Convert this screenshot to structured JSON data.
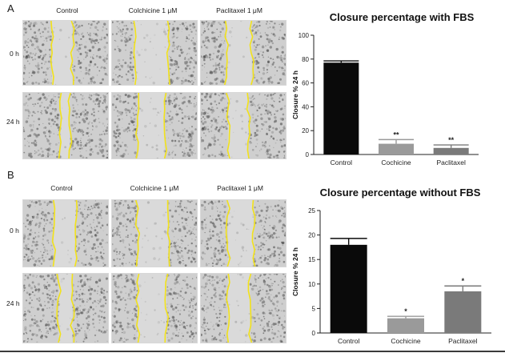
{
  "panels": [
    {
      "letter": "A",
      "columns": [
        "Control",
        "Colchicine 1 μM",
        "Paclitaxel 1 μM"
      ],
      "rows": [
        "0 h",
        "24 h"
      ]
    },
    {
      "letter": "B",
      "columns": [
        "Control",
        "Colchicine 1 μM",
        "Paclitaxel 1 μM"
      ],
      "rows": [
        "0 h",
        "24 h"
      ]
    }
  ],
  "colors": {
    "wound_edge": "#f2e21a",
    "bar_control": "#0a0a0a",
    "bar_colchicine": "#9a9a9a",
    "bar_paclitaxel": "#7a7a7a"
  },
  "chart_data": [
    {
      "type": "bar",
      "title": "Closure percentage with FBS",
      "ylabel": "Closure % 24 h",
      "xlabel": "",
      "categories": [
        "Control",
        "Cochicine",
        "Paclitaxel"
      ],
      "values": [
        77,
        9,
        5.5
      ],
      "errors": [
        1.5,
        3.5,
        2.5
      ],
      "significance": [
        "",
        "**",
        "**"
      ],
      "ylim": [
        0,
        100
      ],
      "yticks": [
        "0",
        "20",
        "40",
        "60",
        "80",
        "100"
      ],
      "grid": false
    },
    {
      "type": "bar",
      "title": "Closure percentage without FBS",
      "ylabel": "Closure % 24 h",
      "xlabel": "",
      "categories": [
        "Control",
        "Cochicine",
        "Paclitaxel"
      ],
      "values": [
        18,
        3,
        8.5
      ],
      "errors": [
        1.3,
        0.4,
        1.1
      ],
      "significance": [
        "",
        "*",
        "*"
      ],
      "ylim": [
        0,
        25
      ],
      "yticks": [
        "0",
        "5",
        "10",
        "15",
        "20",
        "25"
      ],
      "grid": false
    }
  ]
}
